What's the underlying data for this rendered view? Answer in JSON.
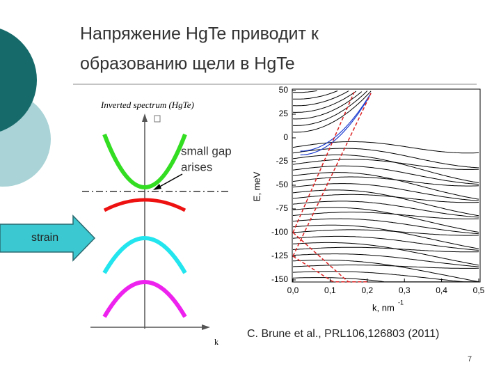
{
  "title": [
    "Напряжение HgTe приводит к",
    "образованию щели в HgTe"
  ],
  "left_diagram": {
    "caption": "Inverted spectrum (HgTe)",
    "annotation": [
      "small gap",
      "arises"
    ],
    "arrow_label": "strain",
    "axis_label": "k"
  },
  "right_plot": {
    "y_axis_label": "E, meV",
    "x_axis_label": "k, nm",
    "x_axis_label_exponent": "-1",
    "yticks": [
      "50",
      "25",
      "0",
      "-25",
      "-50",
      "-75",
      "-100",
      "-125",
      "-150"
    ],
    "xticks": [
      "0,0",
      "0,1",
      "0,2",
      "0,3",
      "0,4",
      "0,5"
    ]
  },
  "citation": "C. Brune et al., PRL106,126803 (2011)",
  "page_number": "7"
}
